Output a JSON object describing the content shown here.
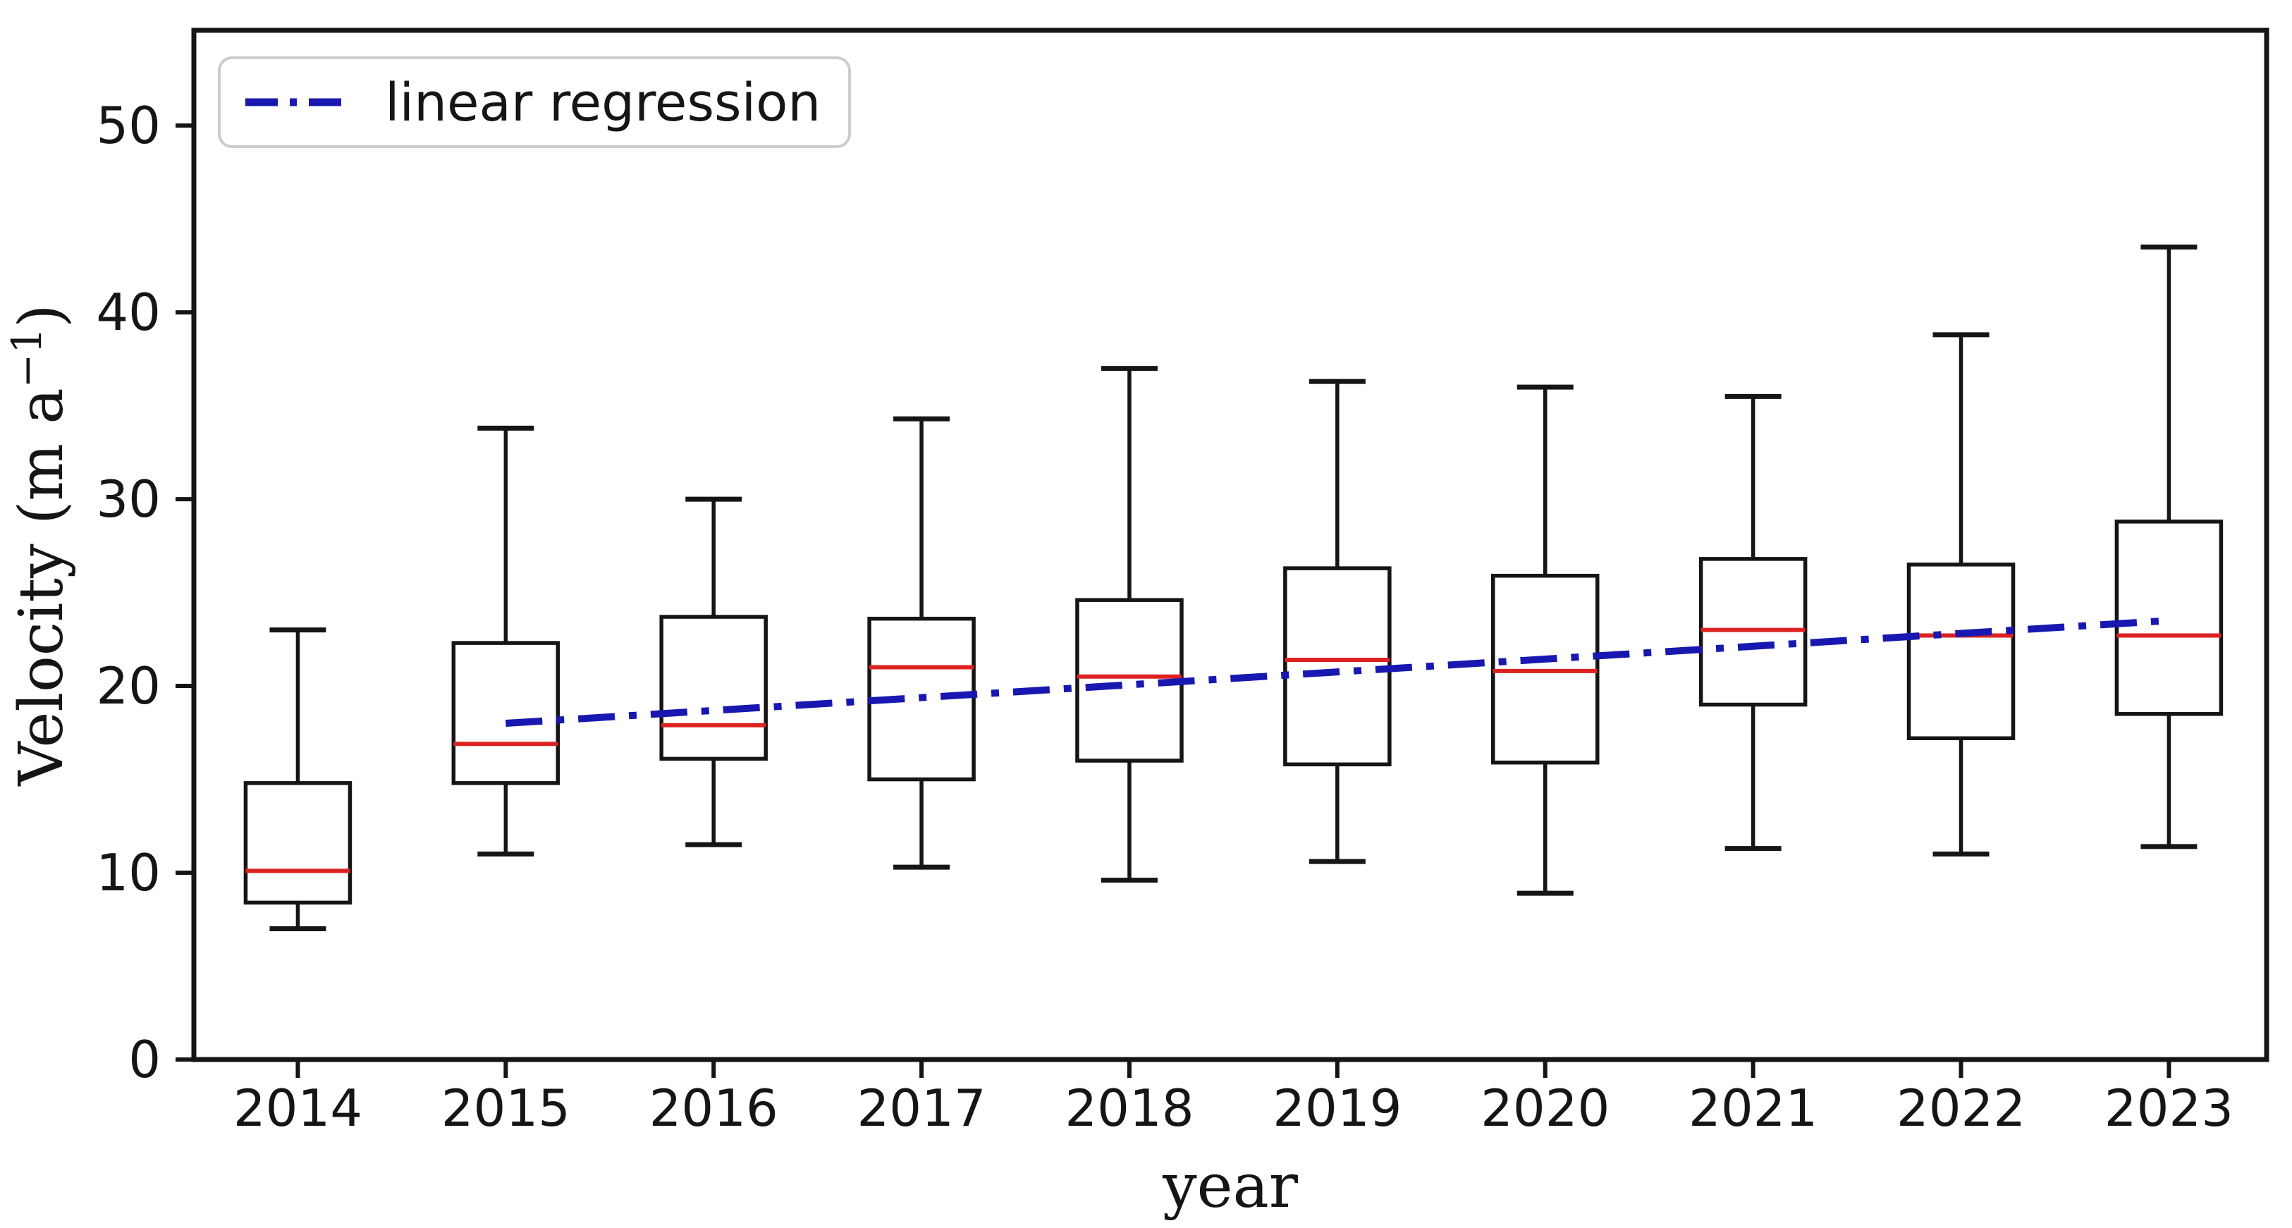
{
  "chart_data": {
    "type": "boxplot",
    "title": "",
    "xlabel": "year",
    "ylabel": "Velocity (m a⁻¹)",
    "ylabel_parts": {
      "main": "Velocity (m a",
      "superscript": "−1",
      "close": ")"
    },
    "categories": [
      "2014",
      "2015",
      "2016",
      "2017",
      "2018",
      "2019",
      "2020",
      "2021",
      "2022",
      "2023"
    ],
    "yticks": [
      "0",
      "10",
      "20",
      "30",
      "40",
      "50"
    ],
    "ylim": [
      0,
      55.1
    ],
    "xlim_years": [
      2013.5,
      2023.47
    ],
    "grid": false,
    "legend": {
      "label": "linear regression",
      "position": "upper left"
    },
    "colors": {
      "box": "#151515",
      "median": "#dd2222",
      "regression": "#1818b0",
      "axis": "#151515",
      "legend_border": "#cccccc",
      "background": "#ffffff"
    },
    "series": [
      {
        "year": "2014",
        "whisker_low": 7.0,
        "q1": 8.4,
        "median": 10.1,
        "q3": 14.8,
        "whisker_high": 23.0
      },
      {
        "year": "2015",
        "whisker_low": 11.0,
        "q1": 14.8,
        "median": 16.9,
        "q3": 22.3,
        "whisker_high": 33.8
      },
      {
        "year": "2016",
        "whisker_low": 11.5,
        "q1": 16.1,
        "median": 17.9,
        "q3": 23.7,
        "whisker_high": 30.0
      },
      {
        "year": "2017",
        "whisker_low": 10.3,
        "q1": 15.0,
        "median": 21.0,
        "q3": 23.6,
        "whisker_high": 34.3
      },
      {
        "year": "2018",
        "whisker_low": 9.6,
        "q1": 16.0,
        "median": 20.5,
        "q3": 24.6,
        "whisker_high": 37.0
      },
      {
        "year": "2019",
        "whisker_low": 10.6,
        "q1": 15.8,
        "median": 21.4,
        "q3": 26.3,
        "whisker_high": 36.3
      },
      {
        "year": "2020",
        "whisker_low": 8.9,
        "q1": 15.9,
        "median": 20.8,
        "q3": 25.9,
        "whisker_high": 36.0
      },
      {
        "year": "2021",
        "whisker_low": 11.3,
        "q1": 19.0,
        "median": 23.0,
        "q3": 26.8,
        "whisker_high": 35.5
      },
      {
        "year": "2022",
        "whisker_low": 11.0,
        "q1": 17.2,
        "median": 22.7,
        "q3": 26.5,
        "whisker_high": 38.8
      },
      {
        "year": "2023",
        "whisker_low": 11.4,
        "q1": 18.5,
        "median": 22.7,
        "q3": 28.8,
        "whisker_high": 43.5
      }
    ],
    "regression": {
      "label": "linear regression",
      "style": "dash-dot",
      "x_start_year": 2015,
      "value_start": 18.0,
      "x_end_year": 2023,
      "value_end": 23.5
    }
  }
}
